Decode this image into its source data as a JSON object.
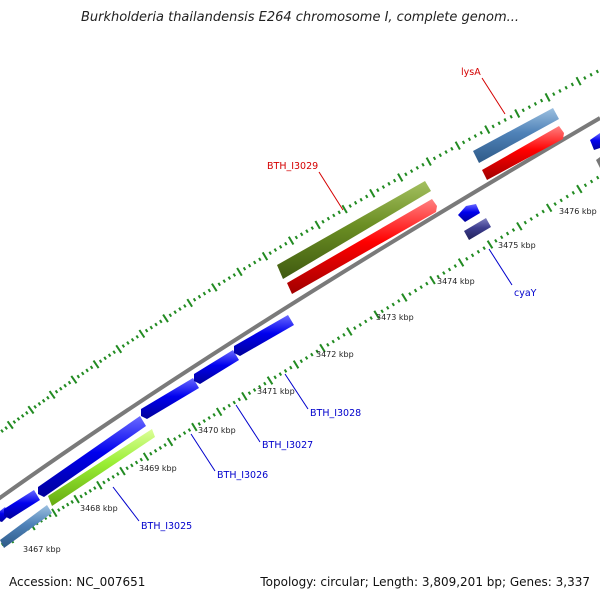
{
  "title": "Burkholderia thailandensis E264 chromosome I, complete genom...",
  "footer": {
    "accession": "Accession: NC_007651",
    "stats": "Topology: circular; Length: 3,809,201 bp; Genes: 3,337"
  },
  "scale_labels": [
    "3467 kbp",
    "3468 kbp",
    "3469 kbp",
    "3470 kbp",
    "3471 kbp",
    "3472 kbp",
    "3473 kbp",
    "3474 kbp",
    "3475 kbp",
    "3476 kbp"
  ],
  "gene_labels": [
    {
      "text": "lysA",
      "color": "#d40000"
    },
    {
      "text": "BTH_I3029",
      "color": "#d40000"
    },
    {
      "text": "cyaY",
      "color": "#0000cc"
    },
    {
      "text": "BTH_I3028",
      "color": "#0000cc"
    },
    {
      "text": "BTH_I3027",
      "color": "#0000cc"
    },
    {
      "text": "BTH_I3026",
      "color": "#0000cc"
    },
    {
      "text": "BTH_I3025",
      "color": "#0000cc"
    }
  ],
  "colors": {
    "backbone": "#888888",
    "cds": "#0000ee",
    "gene": "#ff0000",
    "rrna_steel": "#4f82b8",
    "olive": "#6b8e23",
    "lime": "#99ee33",
    "dark_purple": "#3d3d8f",
    "gc_ticks": "#228b22"
  }
}
